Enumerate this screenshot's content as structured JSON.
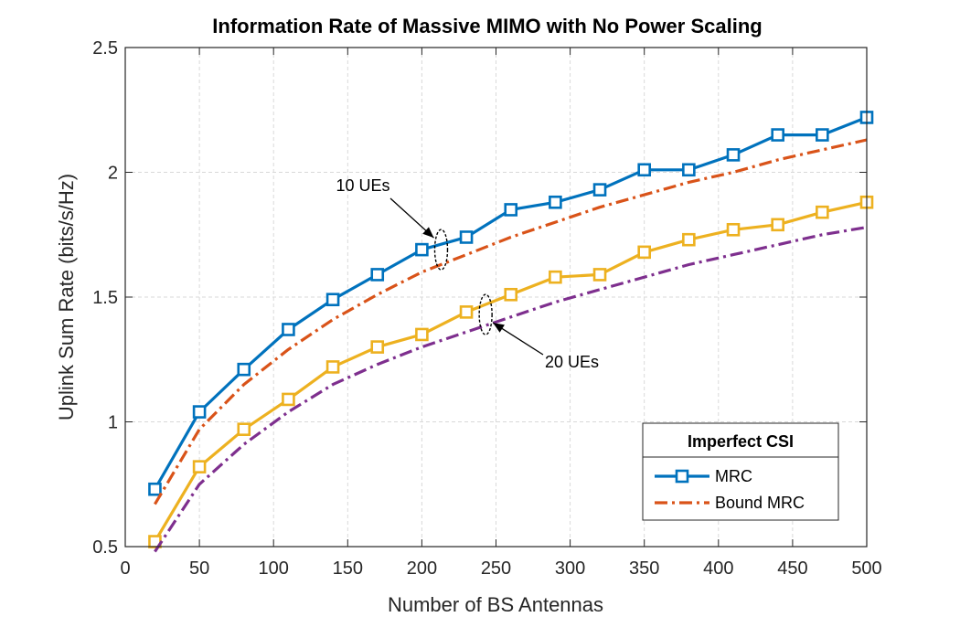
{
  "chart_data": {
    "type": "line",
    "title": "Information Rate of Massive MIMO with No Power Scaling",
    "xlabel": "Number of BS Antennas",
    "ylabel": "Uplink Sum Rate (bits/s/Hz)",
    "xlim": [
      0,
      500
    ],
    "ylim": [
      0.5,
      2.5
    ],
    "xticks": [
      0,
      50,
      100,
      150,
      200,
      250,
      300,
      350,
      400,
      450,
      500
    ],
    "yticks": [
      0.5,
      1,
      1.5,
      2,
      2.5
    ],
    "grid": true,
    "legend": {
      "title": "Imperfect CSI",
      "placement": "bottom-right",
      "entries": [
        "MRC",
        "Bound MRC"
      ]
    },
    "x": [
      20,
      50,
      80,
      110,
      140,
      170,
      200,
      230,
      260,
      290,
      320,
      350,
      380,
      410,
      440,
      470,
      500
    ],
    "series": [
      {
        "group": "10 UEs",
        "style": "solid-square",
        "color": "#0072BD",
        "values": [
          0.73,
          1.04,
          1.21,
          1.37,
          1.49,
          1.59,
          1.69,
          1.74,
          1.85,
          1.88,
          1.93,
          2.01,
          2.01,
          2.07,
          2.15,
          2.15,
          2.22
        ]
      },
      {
        "group": "10 UEs",
        "style": "dashdot",
        "color": "#D95319",
        "values": [
          0.67,
          0.97,
          1.15,
          1.29,
          1.41,
          1.51,
          1.6,
          1.67,
          1.74,
          1.8,
          1.86,
          1.91,
          1.96,
          2.0,
          2.05,
          2.09,
          2.13
        ]
      },
      {
        "group": "20 UEs",
        "style": "solid-square",
        "color": "#EDB120",
        "values": [
          0.52,
          0.82,
          0.97,
          1.09,
          1.22,
          1.3,
          1.35,
          1.44,
          1.51,
          1.58,
          1.59,
          1.68,
          1.73,
          1.77,
          1.79,
          1.84,
          1.88
        ]
      },
      {
        "group": "20 UEs",
        "style": "dashdot",
        "color": "#7E2F8E",
        "values": [
          0.48,
          0.75,
          0.91,
          1.04,
          1.15,
          1.23,
          1.3,
          1.36,
          1.42,
          1.48,
          1.53,
          1.58,
          1.63,
          1.67,
          1.71,
          1.75,
          1.78
        ]
      }
    ],
    "annotations": [
      {
        "text": "10 UEs",
        "at_x": 213,
        "at_y": 1.69
      },
      {
        "text": "20 UEs",
        "at_x": 243,
        "at_y": 1.43
      }
    ]
  }
}
